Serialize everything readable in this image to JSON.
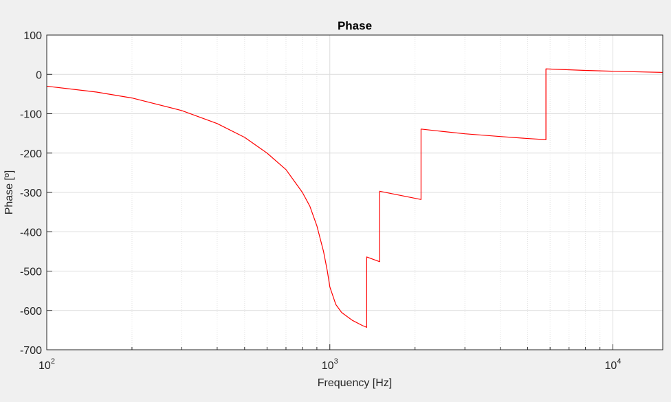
{
  "colors": {
    "figure_background": "#f0f0f0",
    "axes_background": "#ffffff",
    "grid_major": "#dcdcdc",
    "grid_minor": "#e3e3e3",
    "axis_color": "#262626",
    "series_color": "#ff0000"
  },
  "chart_data": {
    "type": "line",
    "title": "Phase",
    "xlabel": "Frequency [Hz]",
    "ylabel": "Phase [º]",
    "xscale": "log",
    "xlim": [
      100,
      15000
    ],
    "ylim": [
      -700,
      100
    ],
    "grid": "major and minor",
    "x_ticks": [
      {
        "base": "10",
        "exp": "2"
      },
      {
        "base": "10",
        "exp": "3"
      },
      {
        "base": "10",
        "exp": "4"
      }
    ],
    "y_ticks": [
      "100",
      "0",
      "-100",
      "-200",
      "-300",
      "-400",
      "-500",
      "-600",
      "-700"
    ],
    "series": [
      {
        "color": "#ff0000",
        "points": [
          [
            100,
            -30
          ],
          [
            150,
            -45
          ],
          [
            200,
            -60
          ],
          [
            300,
            -92
          ],
          [
            400,
            -125
          ],
          [
            500,
            -160
          ],
          [
            600,
            -200
          ],
          [
            700,
            -242
          ],
          [
            800,
            -300
          ],
          [
            850,
            -335
          ],
          [
            900,
            -385
          ],
          [
            950,
            -450
          ],
          [
            980,
            -500
          ],
          [
            1000,
            -540
          ],
          [
            1050,
            -585
          ],
          [
            1100,
            -605
          ],
          [
            1200,
            -625
          ],
          [
            1300,
            -638
          ],
          [
            1350,
            -643
          ],
          [
            1350,
            -464
          ],
          [
            1500,
            -476
          ],
          [
            1500,
            -297
          ],
          [
            2100,
            -318
          ],
          [
            2100,
            -139
          ],
          [
            2500,
            -145
          ],
          [
            3000,
            -151
          ],
          [
            4000,
            -158
          ],
          [
            5000,
            -163
          ],
          [
            5800,
            -166
          ],
          [
            5800,
            14
          ],
          [
            8000,
            10
          ],
          [
            10000,
            8
          ],
          [
            15000,
            5
          ]
        ]
      }
    ]
  }
}
